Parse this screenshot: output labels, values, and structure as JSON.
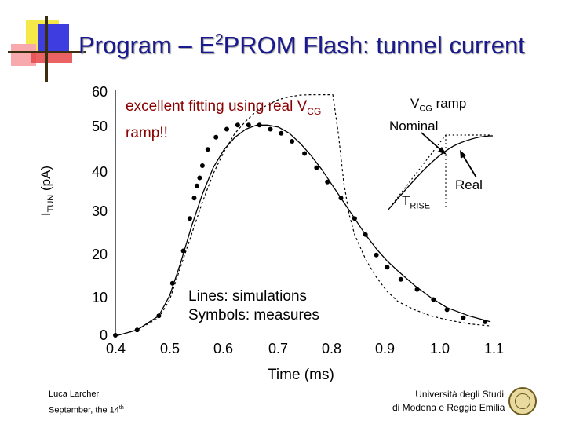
{
  "slide": {
    "title_pre": "Program – E",
    "title_sup": "2",
    "title_post": "PROM Flash: tunnel current",
    "fit_note_line1_pre": "excellent fitting using real V",
    "fit_note_line1_sub": "CG",
    "fit_note_line2": "ramp!!",
    "legend_line1": "Lines: simulations",
    "legend_line2": "Symbols: measures",
    "footer_left_line1": "Luca Larcher",
    "footer_left_line2_pre": "September, the 14",
    "footer_left_line2_sup": "th",
    "footer_right_line1": "Università degli Studi",
    "footer_right_line2": "di Modena e Reggio Emilia"
  },
  "inset": {
    "title_pre": "V",
    "title_sub": "CG",
    "title_post": " ramp",
    "nominal_label": "Nominal",
    "real_label": "Real",
    "trise_pre": "T",
    "trise_sub": "RISE"
  },
  "colors": {
    "title": "#1a1a90",
    "fit_note": "#8a0000",
    "decor_blue": "#3d3de0",
    "decor_yellow": "#f5e94a",
    "decor_red": "#e8474a",
    "decor_pink": "#f7a9ad"
  },
  "chart_data": {
    "type": "scatter",
    "ylabel_main": "I",
    "ylabel_sub": "TUN",
    "ylabel_unit": " (pA)",
    "xlabel": "Time  (ms)",
    "xlim": [
      0.4,
      1.1
    ],
    "ylim": [
      0,
      60
    ],
    "xticks": [
      "0.4",
      "0.5",
      "0.6",
      "0.7",
      "0.8",
      "0.9",
      "1.0",
      "1.1"
    ],
    "yticks": [
      "0",
      "10",
      "20",
      "30",
      "40",
      "50",
      "60"
    ],
    "series": [
      {
        "style": "markers",
        "x": [
          0.4,
          0.44,
          0.48,
          0.505,
          0.525,
          0.537,
          0.545,
          0.55,
          0.555,
          0.56,
          0.57,
          0.585,
          0.605,
          0.625,
          0.645,
          0.665,
          0.685,
          0.705,
          0.725,
          0.748,
          0.77,
          0.79,
          0.815,
          0.84,
          0.86,
          0.88,
          0.9,
          0.925,
          0.955,
          0.985,
          1.01,
          1.04,
          1.08
        ],
        "y": [
          0.2,
          1.5,
          5,
          13,
          21,
          29,
          34,
          37,
          39,
          42,
          46,
          49,
          51,
          52,
          52,
          52,
          51,
          50,
          48,
          45,
          41.5,
          38,
          34,
          29,
          25,
          20,
          17,
          14,
          11.5,
          9,
          6.5,
          4.5,
          3.5
        ]
      },
      {
        "style": "solid-line",
        "x": [
          0.4,
          0.44,
          0.48,
          0.5,
          0.52,
          0.54,
          0.56,
          0.58,
          0.6,
          0.62,
          0.64,
          0.66,
          0.68,
          0.7,
          0.72,
          0.74,
          0.76,
          0.78,
          0.8,
          0.82,
          0.84,
          0.86,
          0.88,
          0.9,
          0.92,
          0.95,
          0.98,
          1.01,
          1.05,
          1.09
        ],
        "y": [
          0,
          1.5,
          5,
          10,
          18,
          27,
          35,
          41.5,
          46,
          49,
          51,
          52,
          52,
          51.5,
          50,
          47.5,
          44.5,
          41,
          37,
          33,
          29,
          25,
          21.5,
          18.5,
          16,
          12.5,
          9.5,
          7,
          5,
          3.5
        ]
      },
      {
        "style": "dashed-line",
        "x": [
          0.4,
          0.44,
          0.48,
          0.5,
          0.52,
          0.54,
          0.56,
          0.58,
          0.6,
          0.62,
          0.64,
          0.66,
          0.68,
          0.7,
          0.72,
          0.74,
          0.76,
          0.78,
          0.8,
          0.81,
          0.82,
          0.83,
          0.84,
          0.86,
          0.88,
          0.9,
          0.92,
          0.95,
          0.98,
          1.01,
          1.05,
          1.09
        ],
        "y": [
          0,
          1.5,
          4.5,
          9,
          17,
          25,
          33,
          40,
          45.5,
          50,
          53,
          55.5,
          57,
          58.3,
          59,
          59.4,
          59.5,
          59.5,
          59.5,
          50,
          38,
          30,
          25,
          19,
          14.5,
          11,
          8.5,
          6.5,
          5,
          4,
          3,
          2.5
        ]
      }
    ]
  }
}
